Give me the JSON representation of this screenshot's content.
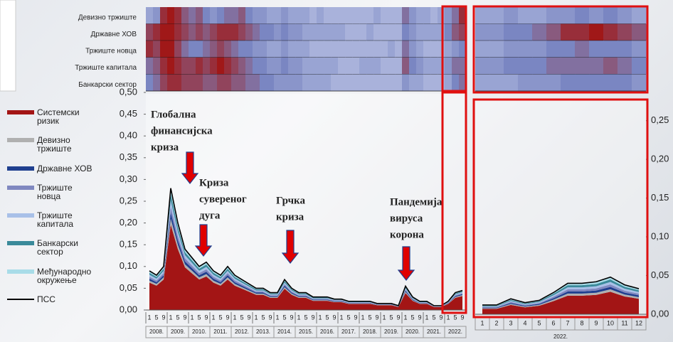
{
  "chart_data": [
    {
      "type": "heatmap",
      "rows": [
        "Девизно тржиште",
        "Државне ХОВ",
        "Тржиште новца",
        "Тржиште капитала",
        "Банкарски сектор"
      ],
      "vlim": [
        0,
        1
      ],
      "colors": [
        "#c8d0ec",
        "#7a86c2",
        "#a01818"
      ],
      "values": [
        [
          0.3,
          0.4,
          0.9,
          1,
          0.9,
          0.7,
          0.6,
          0.7,
          0.5,
          0.4,
          0.5,
          0.6,
          0.6,
          0.7,
          0.5,
          0.4,
          0.4,
          0.3,
          0.3,
          0.4,
          0.3,
          0.3,
          0.3,
          0.2,
          0.3,
          0.2,
          0.2,
          0.2,
          0.2,
          0.2,
          0.2,
          0.2,
          0.3,
          0.2,
          0.2,
          0.2,
          0.6,
          0.4,
          0.3,
          0.3,
          0.2,
          0.3,
          0.4,
          0.6,
          0.9
        ],
        [
          0.8,
          0.9,
          1,
          1,
          0.9,
          0.8,
          0.7,
          0.8,
          0.7,
          0.8,
          0.9,
          0.9,
          0.9,
          0.8,
          0.7,
          0.6,
          0.5,
          0.5,
          0.4,
          0.5,
          0.4,
          0.4,
          0.3,
          0.3,
          0.3,
          0.3,
          0.3,
          0.3,
          0.2,
          0.2,
          0.2,
          0.3,
          0.2,
          0.2,
          0.2,
          0.2,
          0.5,
          0.4,
          0.3,
          0.3,
          0.3,
          0.3,
          0.5,
          0.7,
          0.8
        ],
        [
          0.9,
          0.8,
          1,
          1,
          0.8,
          0.6,
          0.5,
          0.5,
          0.6,
          0.7,
          0.8,
          0.7,
          0.6,
          0.5,
          0.5,
          0.4,
          0.4,
          0.3,
          0.3,
          0.4,
          0.3,
          0.3,
          0.3,
          0.2,
          0.2,
          0.2,
          0.2,
          0.2,
          0.2,
          0.2,
          0.2,
          0.2,
          0.2,
          0.2,
          0.3,
          0.2,
          0.6,
          0.4,
          0.3,
          0.2,
          0.2,
          0.2,
          0.3,
          0.4,
          0.5
        ],
        [
          0.6,
          0.7,
          0.9,
          1,
          0.9,
          0.8,
          0.8,
          0.9,
          0.8,
          0.9,
          1,
          0.9,
          0.8,
          0.7,
          0.6,
          0.5,
          0.5,
          0.4,
          0.4,
          0.5,
          0.4,
          0.4,
          0.3,
          0.3,
          0.3,
          0.3,
          0.3,
          0.2,
          0.2,
          0.2,
          0.3,
          0.3,
          0.3,
          0.2,
          0.2,
          0.2,
          0.7,
          0.5,
          0.4,
          0.3,
          0.3,
          0.3,
          0.4,
          0.6,
          0.6
        ],
        [
          0.5,
          0.6,
          0.8,
          0.9,
          0.9,
          0.8,
          0.8,
          0.8,
          0.7,
          0.7,
          0.8,
          0.8,
          0.7,
          0.7,
          0.6,
          0.6,
          0.5,
          0.5,
          0.4,
          0.4,
          0.4,
          0.4,
          0.3,
          0.3,
          0.3,
          0.3,
          0.2,
          0.2,
          0.2,
          0.2,
          0.2,
          0.2,
          0.2,
          0.2,
          0.2,
          0.2,
          0.4,
          0.3,
          0.3,
          0.2,
          0.2,
          0.2,
          0.3,
          0.5,
          0.6
        ]
      ]
    },
    {
      "type": "area",
      "categories": [
        "1",
        "5",
        "9",
        "1",
        "5",
        "9",
        "1",
        "5",
        "9",
        "1",
        "5",
        "9",
        "1",
        "5",
        "9",
        "1",
        "5",
        "9",
        "1",
        "5",
        "9",
        "1",
        "5",
        "9",
        "1",
        "5",
        "9",
        "1",
        "5",
        "9",
        "1",
        "5",
        "9",
        "1",
        "5",
        "9",
        "1",
        "5",
        "9",
        "1",
        "5",
        "9",
        "1",
        "5",
        "9"
      ],
      "year_labels": [
        "2008.",
        "2009.",
        "2010.",
        "2011.",
        "2012.",
        "2013.",
        "2014.",
        "2015.",
        "2016.",
        "2017.",
        "2018.",
        "2019.",
        "2020.",
        "2021.",
        "2022."
      ],
      "ylim": [
        0,
        0.5
      ],
      "yticks": [
        {
          "value": 0,
          "label": "0,00"
        },
        {
          "value": 0.05,
          "label": "0,05"
        },
        {
          "value": 0.1,
          "label": "0,10"
        },
        {
          "value": 0.15,
          "label": "0,15"
        },
        {
          "value": 0.2,
          "label": "0,20"
        },
        {
          "value": 0.25,
          "label": "0,25"
        },
        {
          "value": 0.3,
          "label": "0,30"
        },
        {
          "value": 0.35,
          "label": "0,35"
        },
        {
          "value": 0.4,
          "label": "0,40"
        },
        {
          "value": 0.45,
          "label": "0,45"
        },
        {
          "value": 0.5,
          "label": "0,50"
        }
      ],
      "series": [
        {
          "name": "Системски ризик",
          "color": "#a31515",
          "values": [
            0.063,
            0.056,
            0.07,
            0.196,
            0.14,
            0.098,
            0.084,
            0.07,
            0.077,
            0.063,
            0.056,
            0.07,
            0.056,
            0.049,
            0.042,
            0.035,
            0.035,
            0.028,
            0.028,
            0.049,
            0.035,
            0.028,
            0.028,
            0.021,
            0.021,
            0.021,
            0.018,
            0.018,
            0.014,
            0.014,
            0.014,
            0.014,
            0.011,
            0.011,
            0.011,
            0.007,
            0.039,
            0.021,
            0.014,
            0.014,
            0.007,
            0.007,
            0.014,
            0.028,
            0.032
          ]
        },
        {
          "name": "Девизно тржиште",
          "color": "#b0b0b0",
          "values": [
            0.0045,
            0.004,
            0.005,
            0.014,
            0.01,
            0.007,
            0.006,
            0.005,
            0.0055,
            0.0045,
            0.004,
            0.005,
            0.004,
            0.0035,
            0.003,
            0.0025,
            0.0025,
            0.002,
            0.002,
            0.0035,
            0.0025,
            0.002,
            0.002,
            0.0015,
            0.0015,
            0.0015,
            0.0013,
            0.0013,
            0.001,
            0.001,
            0.001,
            0.001,
            0.0008,
            0.0008,
            0.0008,
            0.0005,
            0.0028,
            0.0015,
            0.001,
            0.001,
            0.0005,
            0.0005,
            0.001,
            0.002,
            0.0023
          ]
        },
        {
          "name": "Државне ХОВ",
          "color": "#1f3f8f",
          "values": [
            0.0045,
            0.004,
            0.005,
            0.014,
            0.01,
            0.007,
            0.006,
            0.005,
            0.0055,
            0.0045,
            0.004,
            0.005,
            0.004,
            0.0035,
            0.003,
            0.0025,
            0.0025,
            0.002,
            0.002,
            0.0035,
            0.0025,
            0.002,
            0.002,
            0.0015,
            0.0015,
            0.0015,
            0.0013,
            0.0013,
            0.001,
            0.001,
            0.001,
            0.001,
            0.0008,
            0.0008,
            0.0008,
            0.0005,
            0.0028,
            0.0015,
            0.001,
            0.001,
            0.0005,
            0.0005,
            0.001,
            0.002,
            0.0023
          ]
        },
        {
          "name": "Тржиште новца",
          "color": "#8088c0",
          "values": [
            0.0045,
            0.004,
            0.005,
            0.014,
            0.01,
            0.007,
            0.006,
            0.005,
            0.0055,
            0.0045,
            0.004,
            0.005,
            0.004,
            0.0035,
            0.003,
            0.0025,
            0.0025,
            0.002,
            0.002,
            0.0035,
            0.0025,
            0.002,
            0.002,
            0.0015,
            0.0015,
            0.0015,
            0.0013,
            0.0013,
            0.001,
            0.001,
            0.001,
            0.001,
            0.0008,
            0.0008,
            0.0008,
            0.0005,
            0.0028,
            0.0015,
            0.001,
            0.001,
            0.0005,
            0.0005,
            0.001,
            0.002,
            0.0023
          ]
        },
        {
          "name": "Тржиште капитала",
          "color": "#a8c0e8",
          "values": [
            0.0045,
            0.004,
            0.005,
            0.014,
            0.01,
            0.007,
            0.006,
            0.005,
            0.0055,
            0.0045,
            0.004,
            0.005,
            0.004,
            0.0035,
            0.003,
            0.0025,
            0.0025,
            0.002,
            0.002,
            0.0035,
            0.0025,
            0.002,
            0.002,
            0.0015,
            0.0015,
            0.0015,
            0.0013,
            0.0013,
            0.001,
            0.001,
            0.001,
            0.001,
            0.0008,
            0.0008,
            0.0008,
            0.0005,
            0.0028,
            0.0015,
            0.001,
            0.001,
            0.0005,
            0.0005,
            0.001,
            0.002,
            0.0023
          ]
        },
        {
          "name": "Банкарски сектор",
          "color": "#3a8a9a",
          "values": [
            0.0045,
            0.004,
            0.005,
            0.014,
            0.01,
            0.007,
            0.006,
            0.005,
            0.0055,
            0.0045,
            0.004,
            0.005,
            0.004,
            0.0035,
            0.003,
            0.0025,
            0.0025,
            0.002,
            0.002,
            0.0035,
            0.0025,
            0.002,
            0.002,
            0.0015,
            0.0015,
            0.0015,
            0.0013,
            0.0013,
            0.001,
            0.001,
            0.001,
            0.001,
            0.0008,
            0.0008,
            0.0008,
            0.0005,
            0.0028,
            0.0015,
            0.001,
            0.001,
            0.0005,
            0.0005,
            0.001,
            0.002,
            0.0023
          ]
        },
        {
          "name": "Међународно окружење",
          "color": "#a8dce8",
          "values": [
            0.0045,
            0.004,
            0.005,
            0.014,
            0.01,
            0.007,
            0.006,
            0.005,
            0.0055,
            0.0045,
            0.004,
            0.005,
            0.004,
            0.0035,
            0.003,
            0.0025,
            0.0025,
            0.002,
            0.002,
            0.0035,
            0.0025,
            0.002,
            0.002,
            0.0015,
            0.0015,
            0.0015,
            0.0013,
            0.0013,
            0.001,
            0.001,
            0.001,
            0.001,
            0.0008,
            0.0008,
            0.0008,
            0.0005,
            0.0028,
            0.0015,
            0.001,
            0.001,
            0.0005,
            0.0005,
            0.001,
            0.002,
            0.0023
          ]
        }
      ],
      "line": {
        "name": "ПСС",
        "color": "#000000",
        "values": [
          0.09,
          0.08,
          0.1,
          0.28,
          0.2,
          0.14,
          0.12,
          0.1,
          0.11,
          0.09,
          0.08,
          0.1,
          0.08,
          0.07,
          0.06,
          0.05,
          0.05,
          0.04,
          0.04,
          0.07,
          0.05,
          0.04,
          0.04,
          0.03,
          0.03,
          0.03,
          0.025,
          0.025,
          0.02,
          0.02,
          0.02,
          0.02,
          0.015,
          0.015,
          0.015,
          0.01,
          0.055,
          0.03,
          0.02,
          0.02,
          0.01,
          0.01,
          0.02,
          0.04,
          0.045
        ]
      },
      "annotations": [
        {
          "lines": [
            "Глобална",
            "финансијска",
            "криза"
          ]
        },
        {
          "lines": [
            "Криза",
            "суверeног",
            "дуга"
          ]
        },
        {
          "lines": [
            "Грчка",
            "криза"
          ]
        },
        {
          "lines": [
            "Пандемија",
            "вируса",
            "корона"
          ]
        }
      ]
    },
    {
      "type": "heatmap",
      "vlim": [
        0,
        1
      ],
      "colors": [
        "#c8d0ec",
        "#7a86c2",
        "#a01818"
      ],
      "values": [
        [
          0.3,
          0.3,
          0.4,
          0.3,
          0.3,
          0.4,
          0.4,
          0.5,
          0.4,
          0.5,
          0.4,
          0.3
        ],
        [
          0.4,
          0.4,
          0.5,
          0.5,
          0.6,
          0.7,
          0.9,
          0.9,
          1,
          0.9,
          0.8,
          0.7
        ],
        [
          0.3,
          0.3,
          0.4,
          0.4,
          0.4,
          0.5,
          0.5,
          0.6,
          0.5,
          0.5,
          0.5,
          0.4
        ],
        [
          0.4,
          0.4,
          0.5,
          0.5,
          0.5,
          0.6,
          0.6,
          0.6,
          0.6,
          0.7,
          0.6,
          0.5
        ],
        [
          0.3,
          0.3,
          0.3,
          0.4,
          0.4,
          0.4,
          0.5,
          0.5,
          0.5,
          0.5,
          0.5,
          0.4
        ]
      ]
    },
    {
      "type": "area",
      "categories": [
        "1",
        "2",
        "3",
        "4",
        "5",
        "6",
        "7",
        "8",
        "9",
        "10",
        "11",
        "12"
      ],
      "year_labels": [
        "2022."
      ],
      "ylim": [
        0,
        0.28
      ],
      "yticks": [
        {
          "value": 0,
          "label": "0,00"
        },
        {
          "value": 0.05,
          "label": "0,05"
        },
        {
          "value": 0.1,
          "label": "0,10"
        },
        {
          "value": 0.15,
          "label": "0,15"
        },
        {
          "value": 0.2,
          "label": "0,20"
        },
        {
          "value": 0.25,
          "label": "0,25"
        }
      ],
      "series": [
        {
          "color": "#a31515",
          "values": [
            0.007,
            0.007,
            0.012,
            0.009,
            0.011,
            0.017,
            0.024,
            0.024,
            0.025,
            0.029,
            0.023,
            0.02
          ]
        },
        {
          "color": "#b0b0b0",
          "values": [
            0.0008,
            0.0008,
            0.0013,
            0.001,
            0.0012,
            0.0019,
            0.0027,
            0.0027,
            0.0028,
            0.0032,
            0.0025,
            0.0022
          ]
        },
        {
          "color": "#1f3f8f",
          "values": [
            0.0008,
            0.0008,
            0.0013,
            0.001,
            0.0012,
            0.0019,
            0.0027,
            0.0027,
            0.0028,
            0.0032,
            0.0025,
            0.0022
          ]
        },
        {
          "color": "#8088c0",
          "values": [
            0.0008,
            0.0008,
            0.0013,
            0.001,
            0.0012,
            0.0019,
            0.0027,
            0.0027,
            0.0028,
            0.0032,
            0.0025,
            0.0022
          ]
        },
        {
          "color": "#a8c0e8",
          "values": [
            0.0008,
            0.0008,
            0.0013,
            0.001,
            0.0012,
            0.0019,
            0.0027,
            0.0027,
            0.0028,
            0.0032,
            0.0025,
            0.0022
          ]
        },
        {
          "color": "#3a8a9a",
          "values": [
            0.0008,
            0.0008,
            0.0013,
            0.001,
            0.0012,
            0.0019,
            0.0027,
            0.0027,
            0.0028,
            0.0032,
            0.0025,
            0.0022
          ]
        },
        {
          "color": "#a8dce8",
          "values": [
            0.0008,
            0.0008,
            0.0013,
            0.001,
            0.0012,
            0.0019,
            0.0027,
            0.0027,
            0.0028,
            0.0032,
            0.0025,
            0.0022
          ]
        }
      ],
      "line": {
        "color": "#000000",
        "values": [
          0.012,
          0.012,
          0.02,
          0.015,
          0.018,
          0.028,
          0.04,
          0.04,
          0.042,
          0.048,
          0.038,
          0.033
        ]
      }
    }
  ]
}
